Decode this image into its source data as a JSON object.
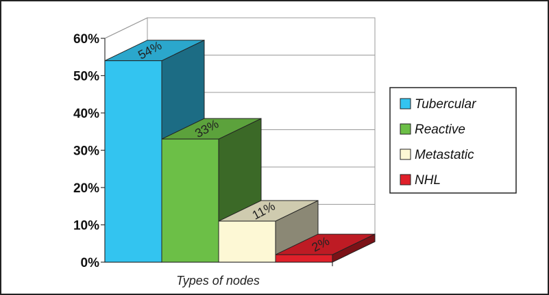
{
  "chart_data": {
    "type": "bar",
    "style": "3d-stacked-steps",
    "categories": [
      "Tubercular",
      "Reactive",
      "Metastatic",
      "NHL"
    ],
    "values": [
      54,
      33,
      11,
      2
    ],
    "data_labels": [
      "54%",
      "33%",
      "11%",
      "2%"
    ],
    "colors": [
      "#33c4f0",
      "#6cbf47",
      "#fdf8d5",
      "#e0202a"
    ],
    "xlabel": "Types of nodes",
    "ylabel": "",
    "ylim": [
      0,
      60
    ],
    "yticks": [
      "0%",
      "10%",
      "20%",
      "30%",
      "40%",
      "50%",
      "60%"
    ],
    "legend": {
      "placement": "right",
      "entries": [
        "Tubercular",
        "Reactive",
        "Metastatic",
        "NHL"
      ]
    },
    "grid": true
  }
}
